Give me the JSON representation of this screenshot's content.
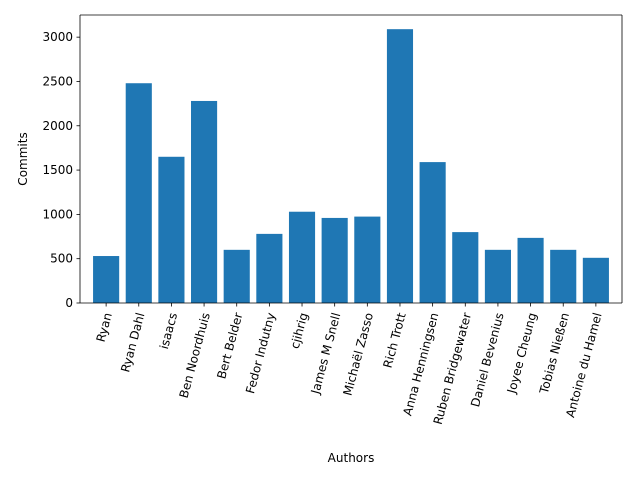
{
  "chart_data": {
    "type": "bar",
    "title": "",
    "xlabel": "Authors",
    "ylabel": "Commits",
    "ylim": [
      0,
      3250
    ],
    "yticks": [
      0,
      500,
      1000,
      1500,
      2000,
      2500,
      3000
    ],
    "grid": false,
    "bar_color": "#1f77b4",
    "categories": [
      "Ryan",
      "Ryan Dahl",
      "isaacs",
      "Ben Noordhuis",
      "Bert Belder",
      "Fedor Indutny",
      "cjihrig",
      "James M Snell",
      "Michaël Zasso",
      "Rich Trott",
      "Anna Henningsen",
      "Ruben Bridgewater",
      "Daniel Bevenius",
      "Joyee Cheung",
      "Tobias Nießen",
      "Antoine du Hamel"
    ],
    "values": [
      530,
      2480,
      1650,
      2280,
      600,
      780,
      1030,
      960,
      975,
      3090,
      1590,
      800,
      600,
      735,
      600,
      510
    ]
  }
}
